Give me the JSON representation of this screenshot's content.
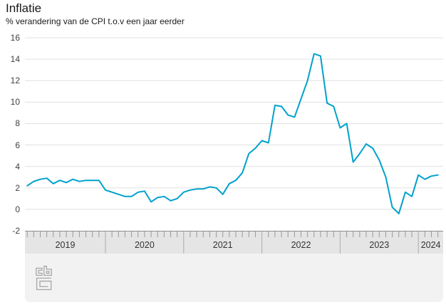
{
  "header": {
    "title": "Inflatie",
    "subtitle": "% verandering van de CPI t.o.v een jaar eerder"
  },
  "chart_data": {
    "type": "line",
    "title": "Inflatie",
    "subtitle": "% verandering van de CPI t.o.v een jaar eerder",
    "xlabel": "",
    "ylabel": "% verandering van de CPI t.o.v een jaar eerder",
    "ylim": [
      -2,
      16
    ],
    "y_ticks": [
      16,
      14,
      12,
      10,
      8,
      6,
      4,
      2,
      0,
      -2
    ],
    "grid": "horizontal",
    "legend_position": "none",
    "x_start": "2019-01",
    "x_end": "2024-04",
    "x_frequency": "monthly",
    "x_year_labels": [
      "2019",
      "2020",
      "2021",
      "2022",
      "2023",
      "2024"
    ],
    "series": [
      {
        "name": "Inflatie (% verandering CPI t.o.v een jaar eerder)",
        "color": "#00a1cd",
        "values": [
          2.2,
          2.6,
          2.8,
          2.9,
          2.4,
          2.7,
          2.5,
          2.8,
          2.6,
          2.7,
          2.7,
          2.7,
          1.8,
          1.6,
          1.4,
          1.2,
          1.2,
          1.6,
          1.7,
          0.7,
          1.1,
          1.2,
          0.8,
          1.0,
          1.6,
          1.8,
          1.9,
          1.9,
          2.1,
          2.0,
          1.4,
          2.4,
          2.7,
          3.4,
          5.2,
          5.7,
          6.4,
          6.2,
          9.7,
          9.6,
          8.8,
          8.6,
          10.3,
          12.0,
          14.5,
          14.3,
          9.9,
          9.6,
          7.6,
          8.0,
          4.4,
          5.2,
          6.1,
          5.7,
          4.6,
          3.0,
          0.2,
          -0.4,
          1.6,
          1.2,
          3.2,
          2.8,
          3.1,
          3.2
        ]
      }
    ]
  },
  "footer": {
    "logo": "cbs-logo"
  },
  "colors": {
    "line": "#00a1cd",
    "grid": "#e0e0e0",
    "axis_band_bg": "#e5e5e5",
    "axis_tick": "#999999",
    "axis_divider": "#ababab",
    "axis_top_edge": "#8c8c8c",
    "footer_bg": "#f2f2f2",
    "text": "#1a1a1a",
    "tick_text": "#404040",
    "logo_stroke": "#a6a6a6"
  }
}
